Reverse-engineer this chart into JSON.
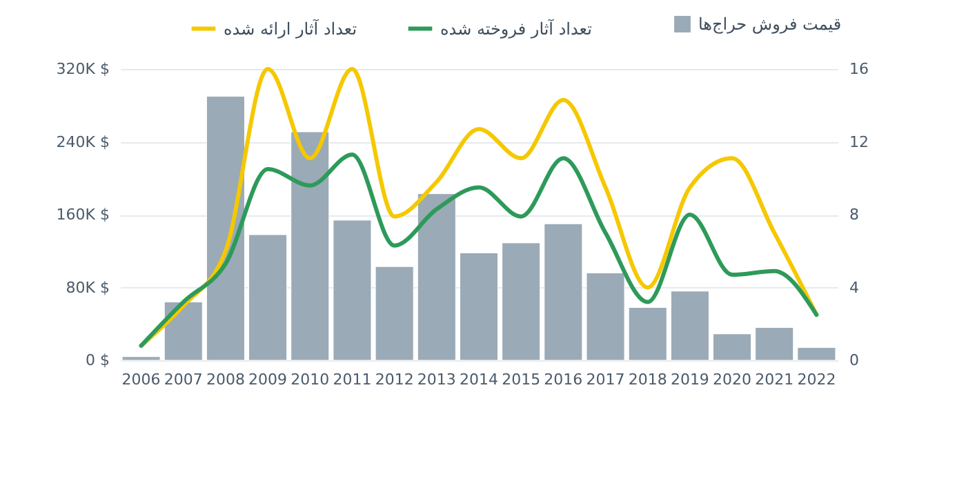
{
  "chart_data": {
    "type": "bar",
    "categories": [
      "2006",
      "2007",
      "2008",
      "2009",
      "2010",
      "2011",
      "2012",
      "2013",
      "2014",
      "2015",
      "2016",
      "2017",
      "2018",
      "2019",
      "2020",
      "2021",
      "2022"
    ],
    "series": [
      {
        "name": "قیمت فروش حراج‌ها",
        "type": "bar",
        "color": "#9aaab6",
        "values": [
          4000,
          64000,
          290000,
          138000,
          251000,
          154000,
          103000,
          183000,
          118000,
          129000,
          150000,
          96000,
          58000,
          76000,
          29000,
          36000,
          14000
        ]
      },
      {
        "name": "تعداد آثار ارائه شده",
        "type": "line",
        "axis": "y2",
        "color": "#f5c800",
        "values": [
          0.8,
          3.0,
          6.0,
          16,
          11.1,
          16,
          7.9,
          9.8,
          12.7,
          11.1,
          14.3,
          9.5,
          4.0,
          9.5,
          11.1,
          7.0,
          2.5
        ]
      },
      {
        "name": "تعداد آثار فروخته شده",
        "type": "line",
        "axis": "y2",
        "color": "#2e9a5a",
        "values": [
          0.8,
          3.2,
          5.3,
          10.5,
          9.6,
          11.3,
          6.3,
          8.3,
          9.5,
          7.9,
          11.1,
          7.0,
          3.2,
          8.0,
          4.7,
          4.9,
          2.5
        ]
      }
    ],
    "ylim": [
      0,
      320000
    ],
    "yticks": [
      {
        "value": 0,
        "label": "0 $"
      },
      {
        "value": 80000,
        "label": "80K $"
      },
      {
        "value": 160000,
        "label": "160K $"
      },
      {
        "value": 240000,
        "label": "240K $"
      },
      {
        "value": 320000,
        "label": "320K $"
      }
    ],
    "y2lim": [
      0,
      16
    ],
    "y2ticks": [
      0,
      4,
      8,
      12,
      16
    ],
    "grid": "y",
    "legend": "top right",
    "line_style": "solid",
    "marker": "none"
  }
}
